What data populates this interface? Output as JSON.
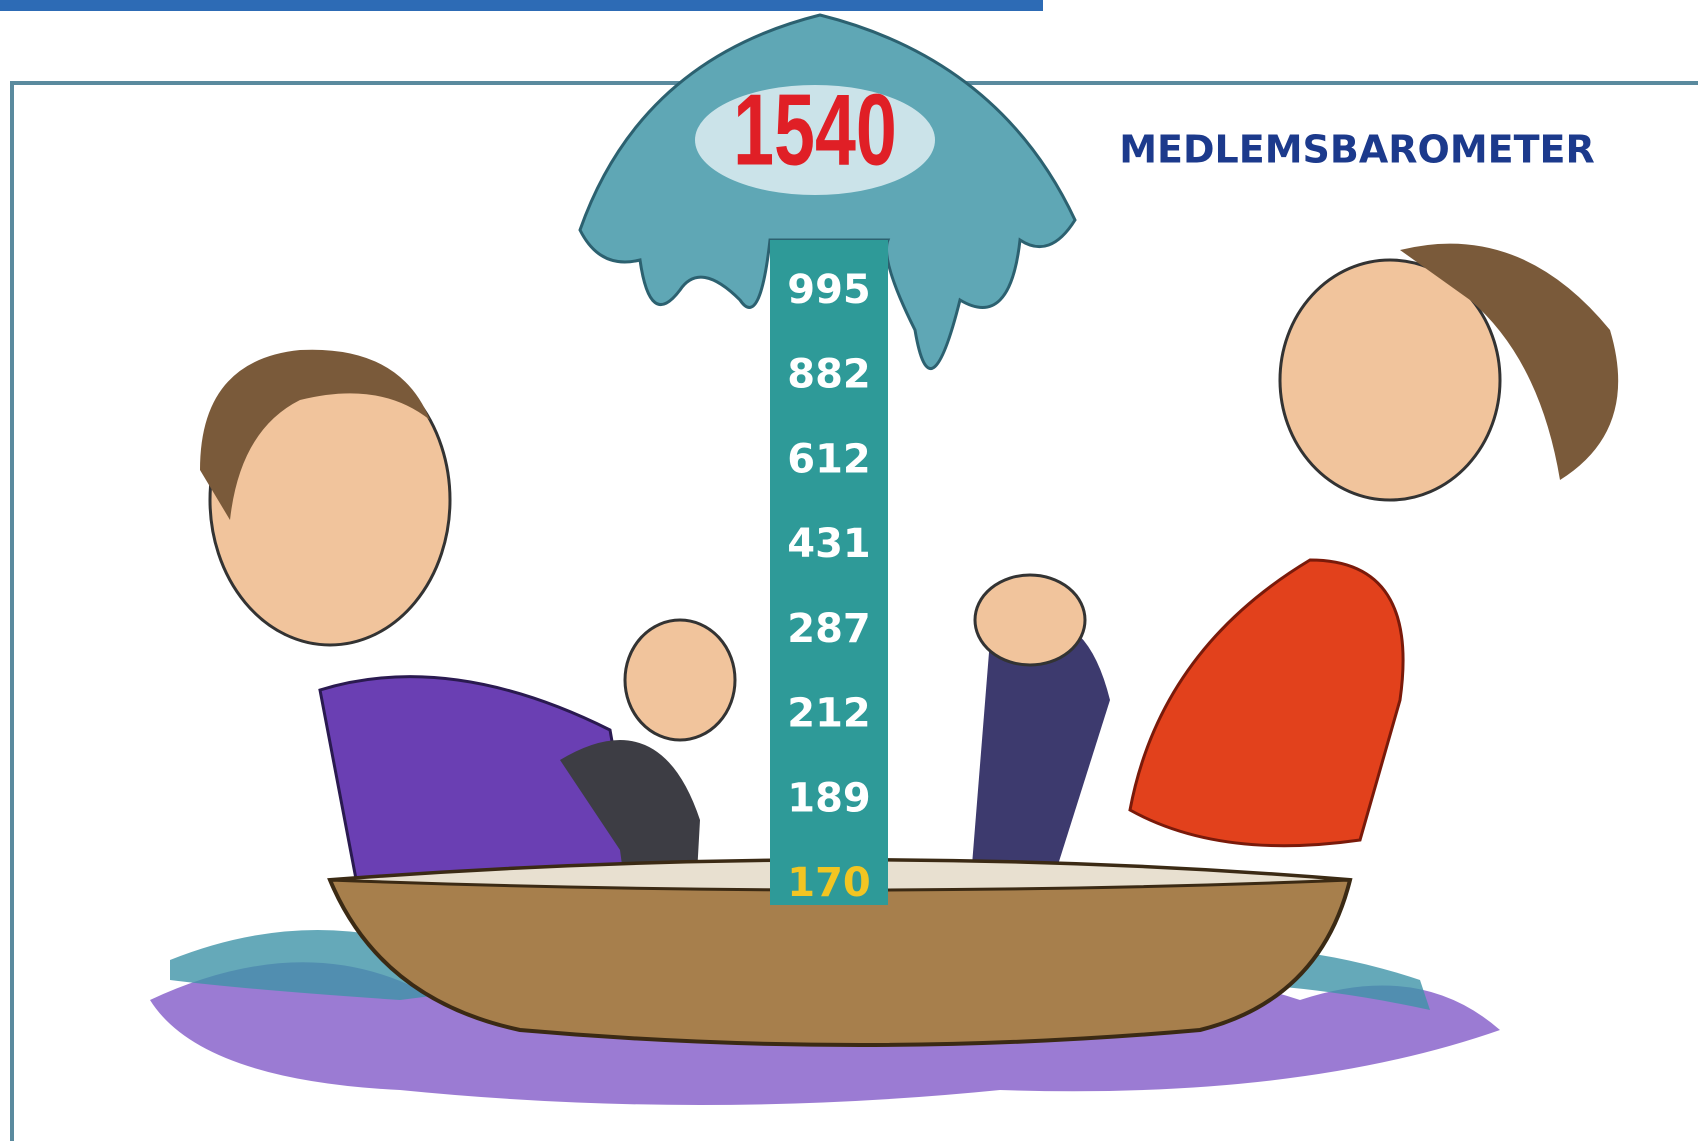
{
  "barometer": {
    "title": "MEDLEMSBAROMETER",
    "top": 1540,
    "levels": [
      995,
      882,
      612,
      431,
      287,
      212,
      189,
      170
    ]
  }
}
